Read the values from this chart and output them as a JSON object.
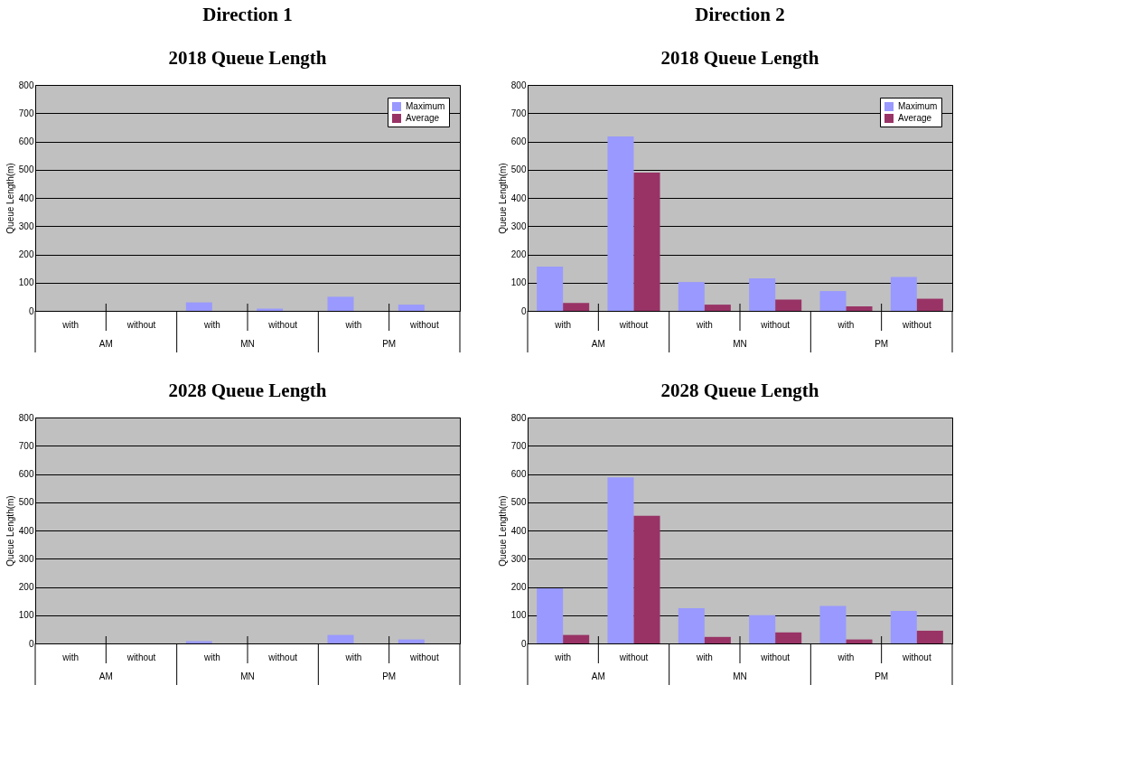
{
  "chart_data": [
    {
      "type": "bar",
      "title": "2018 Queue Length",
      "ylabel": "Queue Length(m)",
      "annotations": [
        "Direction 1",
        "AM",
        "MN",
        "PM"
      ],
      "categories": [
        "with",
        "without",
        "with",
        "without",
        "with",
        "without"
      ],
      "ylim": [
        0,
        800
      ],
      "yticks": [
        0,
        100,
        200,
        300,
        400,
        500,
        600,
        700,
        800
      ],
      "grid": "y",
      "legend": "top right",
      "series": [
        {
          "name": "Maximum",
          "color": "#9999ff",
          "values": [
            0,
            0,
            30,
            8,
            50,
            22
          ]
        },
        {
          "name": "Average",
          "color": "#993366",
          "values": [
            0,
            0,
            0,
            0,
            0,
            0
          ]
        }
      ]
    },
    {
      "type": "bar",
      "title": "2018 Queue Length",
      "ylabel": "Queue Length(m)",
      "annotations": [
        "Direction 2",
        "AM",
        "MN",
        "PM"
      ],
      "categories": [
        "with",
        "without",
        "with",
        "without",
        "with",
        "without"
      ],
      "ylim": [
        0,
        800
      ],
      "yticks": [
        0,
        100,
        200,
        300,
        400,
        500,
        600,
        700,
        800
      ],
      "grid": "y",
      "legend": "top right",
      "series": [
        {
          "name": "Maximum",
          "color": "#9999ff",
          "values": [
            157,
            618,
            102,
            115,
            70,
            120
          ]
        },
        {
          "name": "Average",
          "color": "#993366",
          "values": [
            28,
            490,
            22,
            40,
            16,
            43
          ]
        }
      ]
    },
    {
      "type": "bar",
      "title": "2028 Queue Length",
      "ylabel": "Queue Length(m)",
      "annotations": [
        "AM",
        "MN",
        "PM"
      ],
      "categories": [
        "with",
        "without",
        "with",
        "without",
        "with",
        "without"
      ],
      "ylim": [
        0,
        800
      ],
      "yticks": [
        0,
        100,
        200,
        300,
        400,
        500,
        600,
        700,
        800
      ],
      "grid": "y",
      "legend": "top right",
      "series": [
        {
          "name": "Maximum",
          "color": "#9999ff",
          "values": [
            0,
            0,
            8,
            0,
            30,
            14
          ]
        },
        {
          "name": "Average",
          "color": "#993366",
          "values": [
            0,
            0,
            0,
            0,
            0,
            0
          ]
        }
      ]
    },
    {
      "type": "bar",
      "title": "2028 Queue Length",
      "ylabel": "Queue Length(m)",
      "annotations": [
        "AM",
        "MN",
        "PM"
      ],
      "categories": [
        "with",
        "without",
        "with",
        "without",
        "with",
        "without"
      ],
      "ylim": [
        0,
        800
      ],
      "yticks": [
        0,
        100,
        200,
        300,
        400,
        500,
        600,
        700,
        800
      ],
      "grid": "y",
      "legend": "top right",
      "series": [
        {
          "name": "Maximum",
          "color": "#9999ff",
          "values": [
            195,
            588,
            125,
            100,
            133,
            115
          ]
        },
        {
          "name": "Average",
          "color": "#993366",
          "values": [
            30,
            452,
            23,
            39,
            14,
            45
          ]
        }
      ]
    }
  ]
}
